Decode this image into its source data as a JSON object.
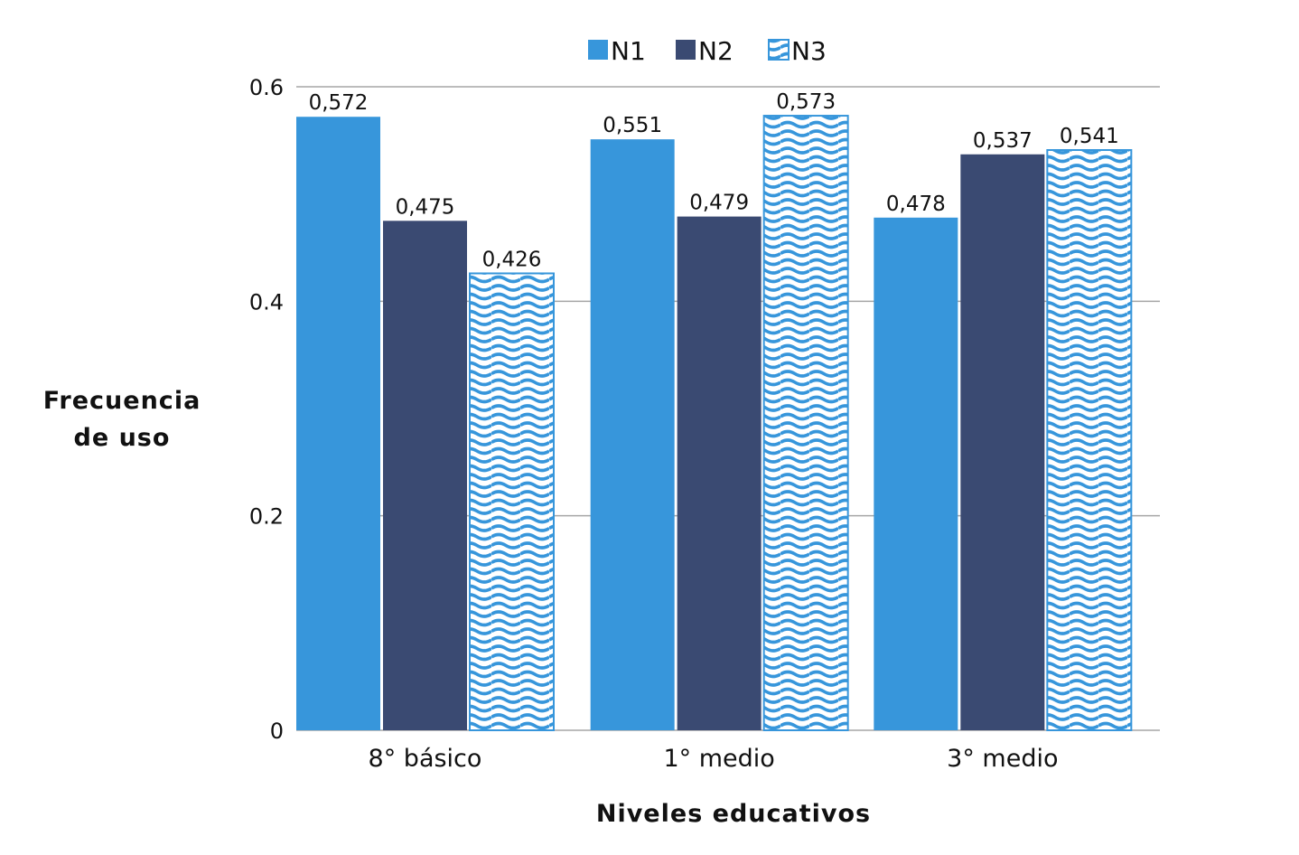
{
  "chart_data": {
    "type": "bar",
    "title": "",
    "xlabel": "Niveles educativos",
    "ylabel": [
      "Frecuencia",
      "de uso"
    ],
    "categories": [
      "8° básico",
      "1° medio",
      "3° medio"
    ],
    "series": [
      {
        "name": "N1",
        "values": [
          0.572,
          0.551,
          0.478
        ],
        "labels": [
          "0,572",
          "0,551",
          "0,478"
        ],
        "color": "#3796db",
        "pattern": "solid"
      },
      {
        "name": "N2",
        "values": [
          0.475,
          0.479,
          0.537
        ],
        "labels": [
          "0,475",
          "0,479",
          "0,537"
        ],
        "color": "#3a4a72",
        "pattern": "solid"
      },
      {
        "name": "N3",
        "values": [
          0.426,
          0.573,
          0.541
        ],
        "labels": [
          "0,426",
          "0,573",
          "0,541"
        ],
        "color": "#3796db",
        "pattern": "wave"
      }
    ],
    "ylim": [
      0,
      0.6
    ],
    "yticks": [
      "0",
      "0.2",
      "0.4",
      "0.6"
    ],
    "ytick_values": [
      0,
      0.2,
      0.4,
      0.6
    ],
    "grid": true,
    "legend_position": "top-center"
  }
}
